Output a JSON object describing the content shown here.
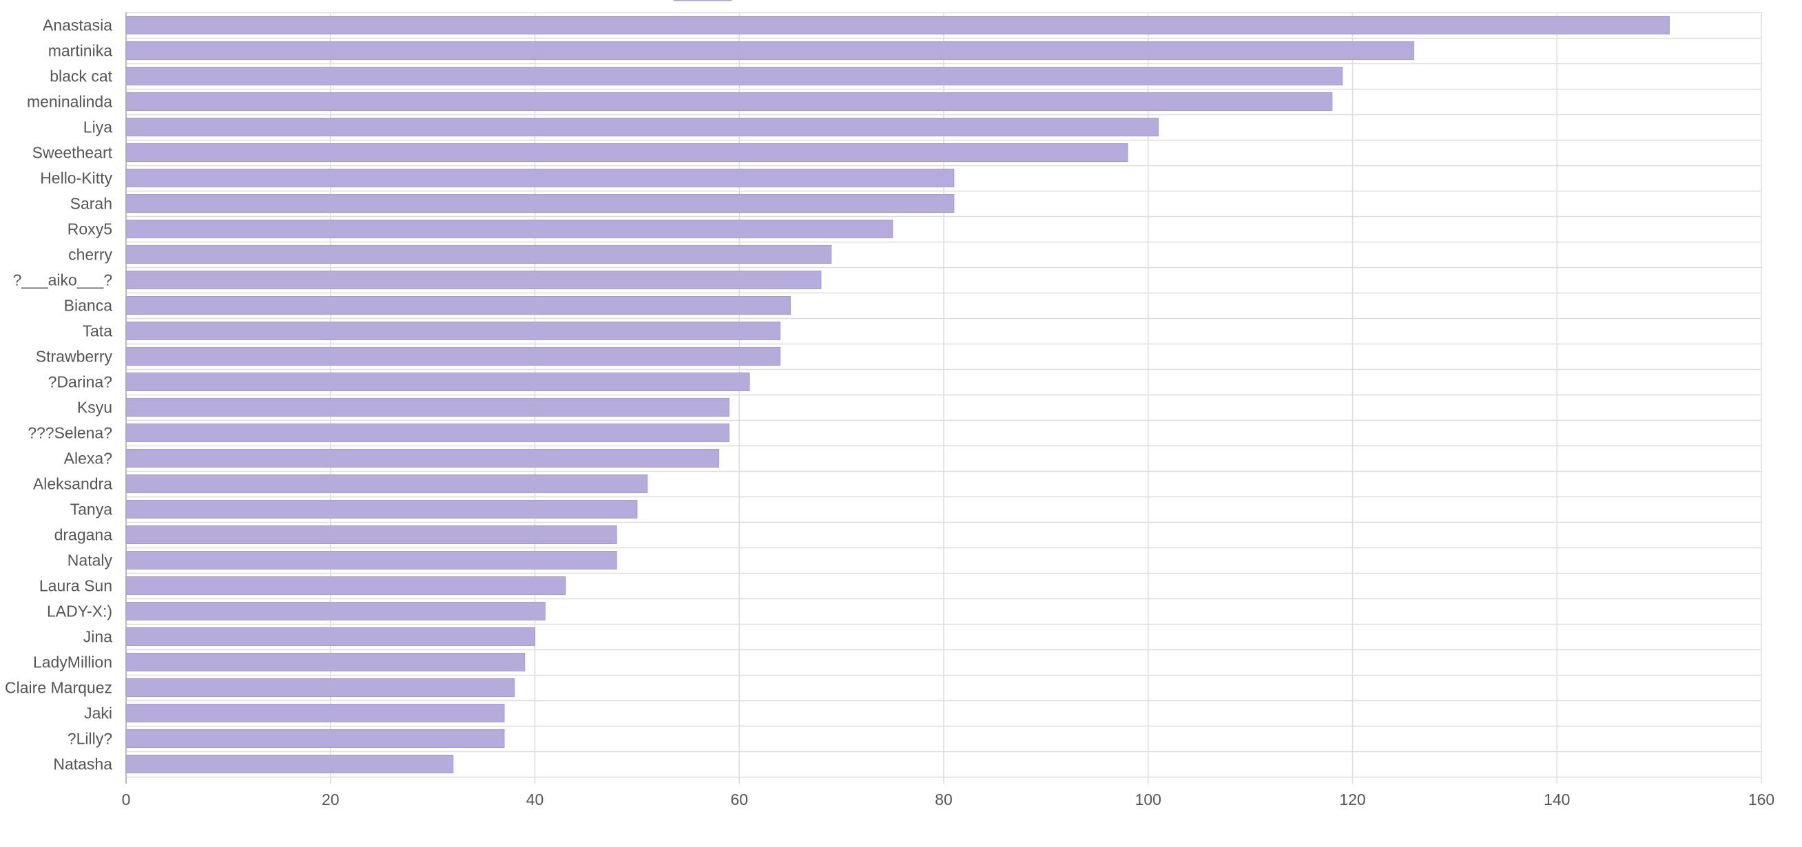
{
  "chart_data": {
    "type": "bar",
    "orientation": "horizontal",
    "categories": [
      "Anastasia",
      "martinika",
      "black cat",
      "meninalinda",
      "Liya",
      "Sweetheart",
      "Hello-Kitty",
      "Sarah",
      "Roxy5",
      "cherry",
      "?___aiko___?",
      "Bianca",
      "Tata",
      "Strawberry",
      "?Darina?",
      "Ksyu",
      "???Selena?",
      "Alexa?",
      "Aleksandra",
      "Tanya",
      "dragana",
      "Nataly",
      "Laura Sun",
      "LADY-X:)",
      "Jina",
      "LadyMillion",
      "Claire Marquez",
      "Jaki",
      "?Lilly?",
      "Natasha"
    ],
    "series": [
      {
        "values": [
          151,
          126,
          119,
          118,
          101,
          98,
          81,
          81,
          75,
          69,
          68,
          65,
          64,
          64,
          61,
          59,
          59,
          58,
          51,
          50,
          48,
          48,
          43,
          41,
          40,
          39,
          38,
          37,
          37,
          32
        ]
      }
    ],
    "xlim": [
      0,
      160
    ],
    "x_ticks": [
      "0",
      "20",
      "40",
      "60",
      "80",
      "100",
      "120",
      "140",
      "160"
    ],
    "grid": true,
    "legend": "top",
    "colors": {
      "bar_fill": "#b6acdb",
      "bar_stroke": "#a79bd4",
      "grid": "#dddddd",
      "axis": "#bbbbbb",
      "text": "#555555"
    }
  }
}
